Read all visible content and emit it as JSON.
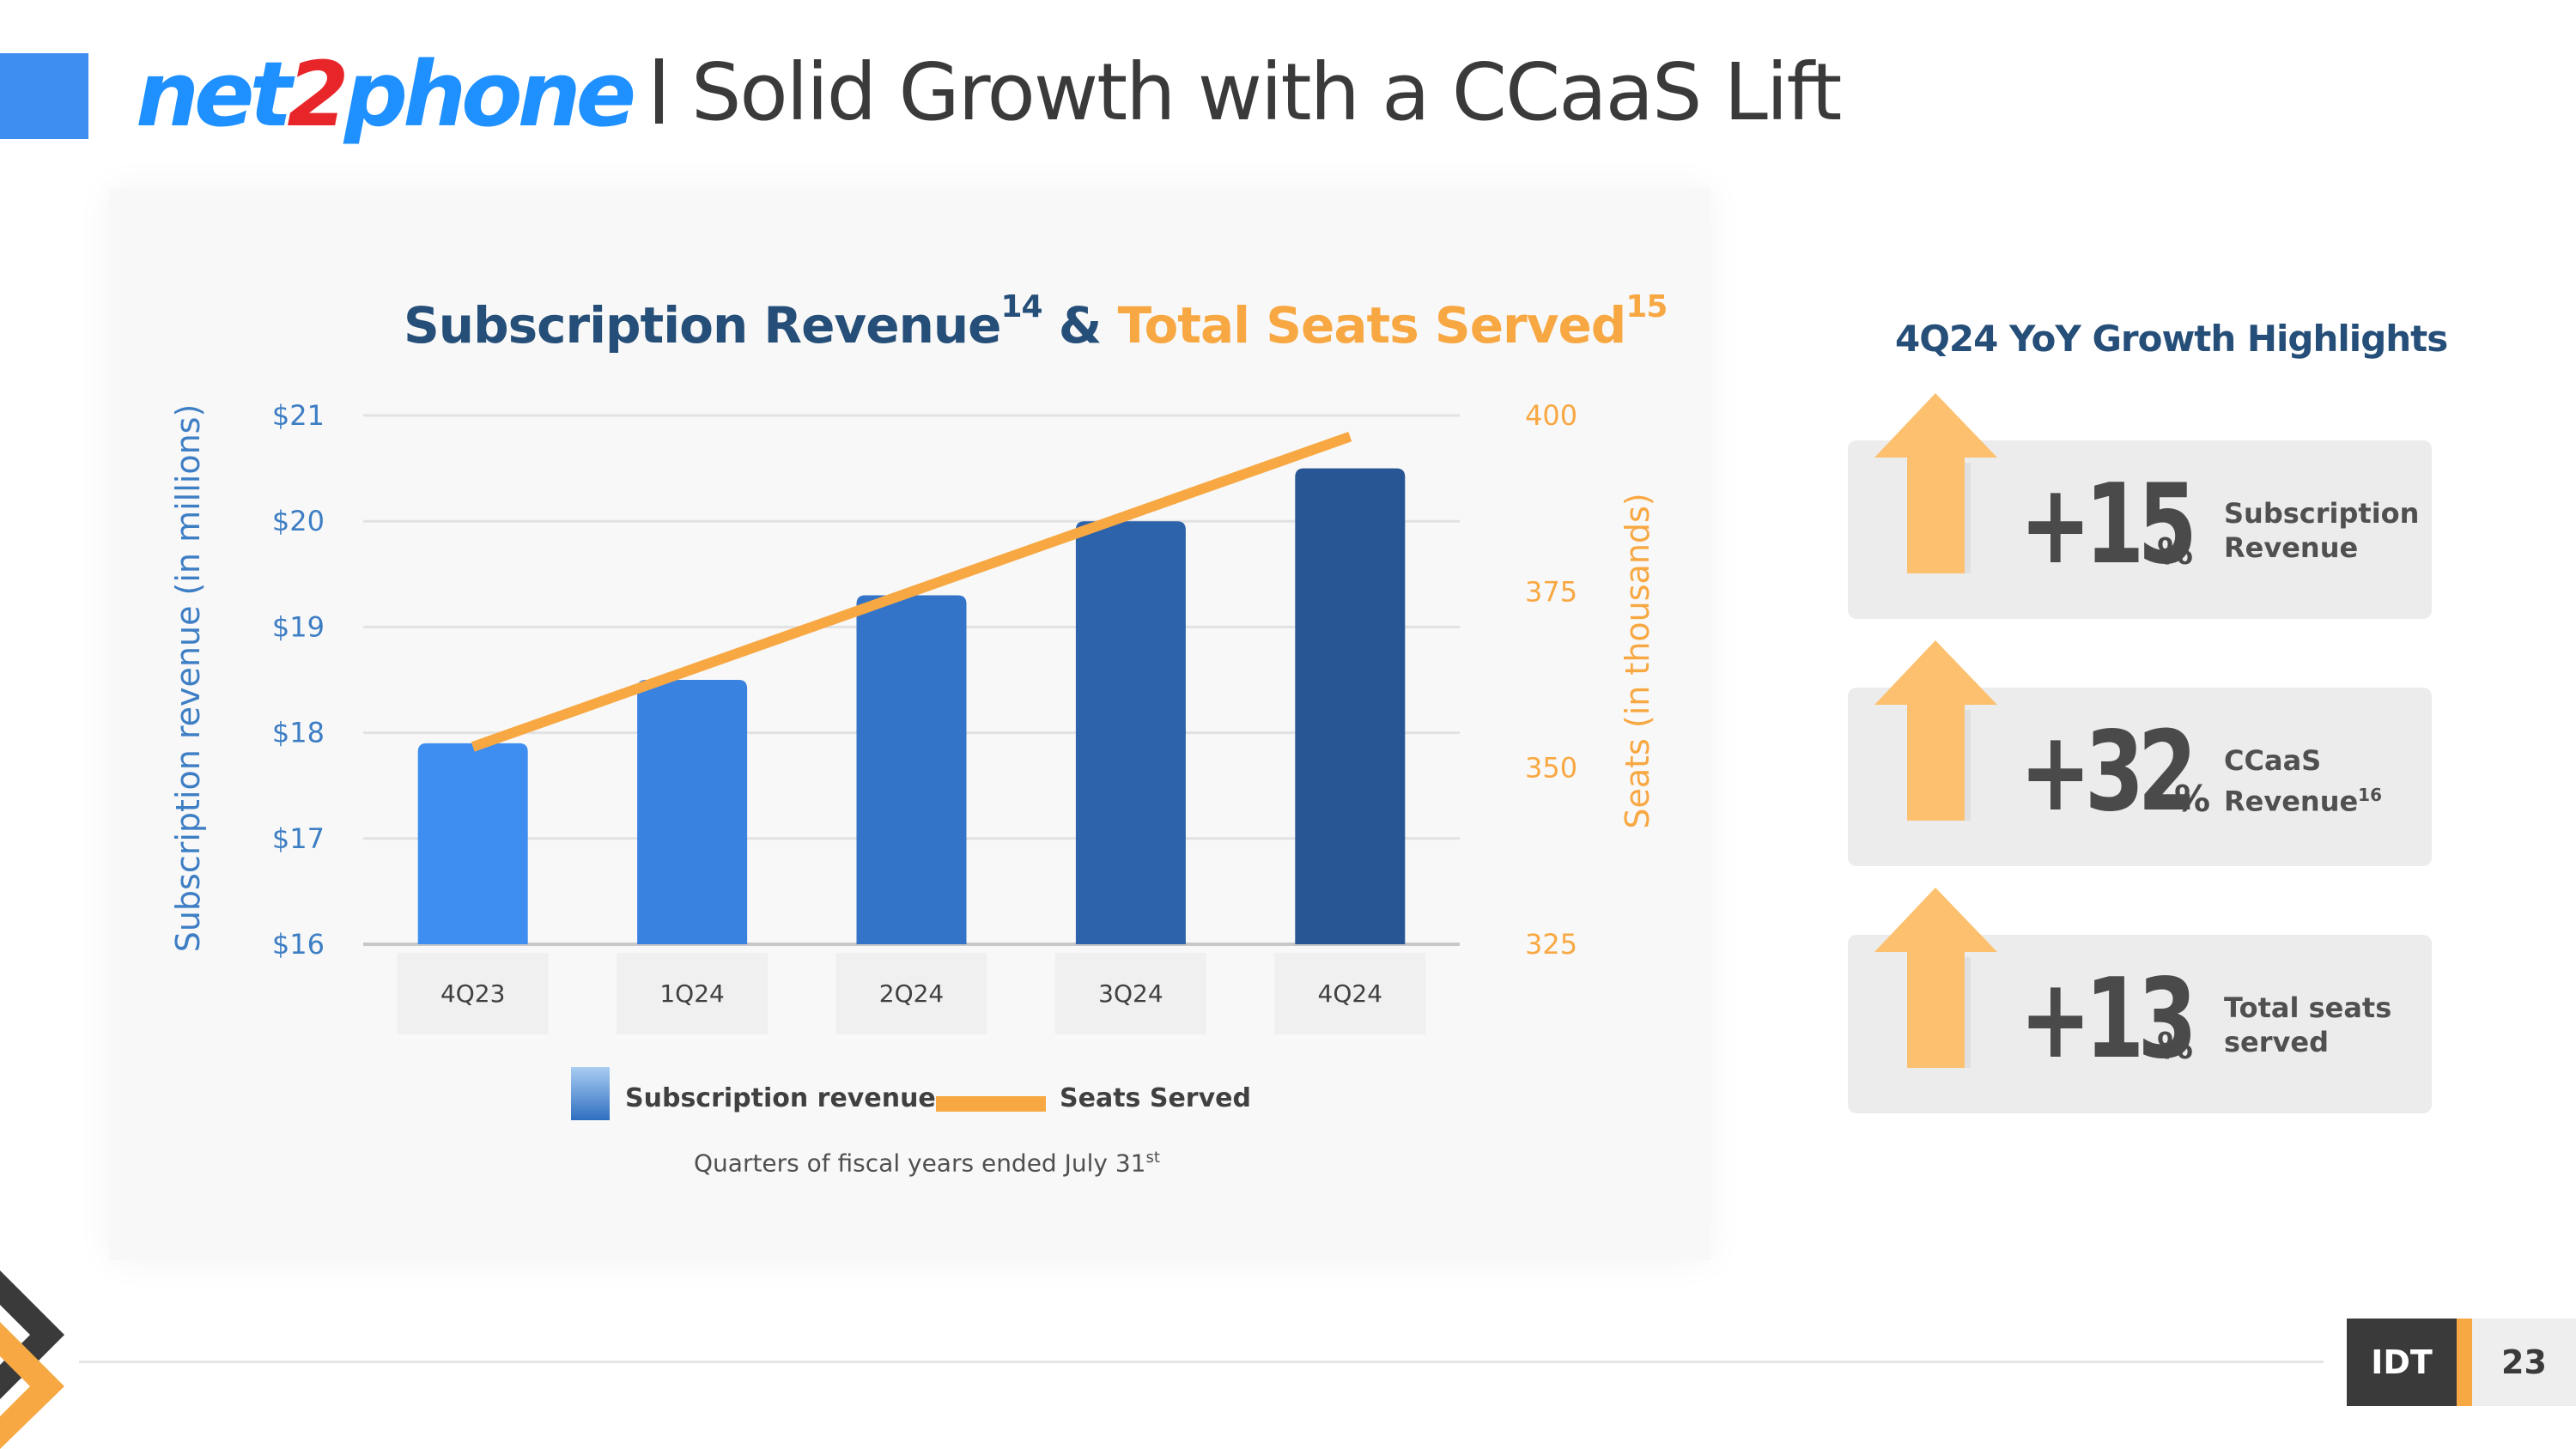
{
  "header": {
    "logo_part1": "net",
    "logo_part2": "2",
    "logo_part3": "phone",
    "title": "Solid Growth with a CCaaS Lift"
  },
  "chart_header": {
    "title_part1": "Subscription Revenue",
    "title_sup1": "14",
    "title_amp": "&",
    "title_part2": "Total Seats Served",
    "title_sup2": "15"
  },
  "chart_data": {
    "type": "bar",
    "categories": [
      "4Q23",
      "1Q24",
      "2Q24",
      "3Q24",
      "4Q24"
    ],
    "series": [
      {
        "name": "Subscription revenue",
        "axis": "left",
        "type": "bar",
        "values": [
          17.9,
          18.5,
          19.3,
          20.0,
          20.5
        ]
      },
      {
        "name": "Seats Served",
        "axis": "right",
        "type": "line",
        "values": [
          353,
          364,
          375,
          386,
          397
        ]
      }
    ],
    "ylabel": "Subscription revenue (in millions)",
    "ylabel_right": "Seats (in thousands)",
    "ylim": [
      16,
      21
    ],
    "ylim_right": [
      325,
      400
    ],
    "yticks_left": [
      "$16",
      "$17",
      "$18",
      "$19",
      "$20",
      "$21"
    ],
    "yticks_right": [
      "325",
      "350",
      "375",
      "400"
    ],
    "legend": [
      "Subscription revenue",
      "Seats Served"
    ],
    "legend_position": "bottom",
    "note": "Quarters of fiscal years ended July 31",
    "note_sup": "st"
  },
  "highlights": {
    "title": "4Q24 YoY Growth Highlights",
    "items": [
      {
        "value": "+15",
        "unit": "%",
        "label_line1": "Subscription",
        "label_line2": "Revenue",
        "label_sup": ""
      },
      {
        "value": "+32",
        "unit": "%",
        "label_line1": "CCaaS",
        "label_line2": "Revenue",
        "label_sup": "16"
      },
      {
        "value": "+13",
        "unit": "%",
        "label_line1": "Total seats",
        "label_line2": "served",
        "label_sup": ""
      }
    ]
  },
  "footer": {
    "brand": "IDT",
    "page_number": "23"
  },
  "colors": {
    "brand_blue": "#1e90ff",
    "brand_red": "#e8262a",
    "navy": "#254e78",
    "orange": "#f8a843",
    "arrow": "#fcc06e"
  }
}
